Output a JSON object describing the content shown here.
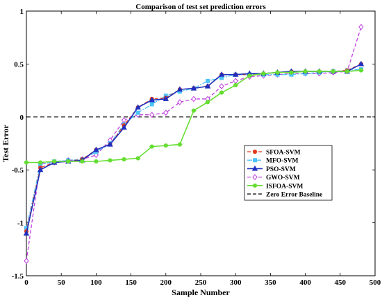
{
  "chart_data": {
    "type": "line",
    "title": "Comparison of test set prediction errors",
    "xlabel": "Sample Number",
    "ylabel": "Test Error",
    "xlim": [
      0,
      500
    ],
    "ylim": [
      -1.5,
      1
    ],
    "xticks": [
      "0",
      "50",
      "100",
      "150",
      "200",
      "250",
      "300",
      "350",
      "400",
      "450",
      "500"
    ],
    "yticks": [
      "-1.5",
      "-1",
      "-0.5",
      "0",
      "0.5",
      "1"
    ],
    "grid": false,
    "legend": "center-right",
    "x": [
      0,
      20,
      40,
      60,
      80,
      100,
      120,
      140,
      160,
      180,
      200,
      220,
      240,
      260,
      280,
      300,
      320,
      340,
      360,
      380,
      400,
      420,
      440,
      460,
      480
    ],
    "series": [
      {
        "name": "SFOA-SVM",
        "color": "#e03a1e",
        "values": [
          -1.08,
          -0.48,
          -0.43,
          -0.42,
          -0.4,
          -0.31,
          -0.26,
          -0.08,
          0.09,
          0.17,
          0.18,
          0.26,
          0.27,
          0.29,
          0.4,
          0.4,
          0.4,
          0.41,
          0.42,
          0.43,
          0.43,
          0.43,
          0.43,
          0.44,
          0.5
        ]
      },
      {
        "name": "MFO-SVM",
        "color": "#4fc3f7",
        "values": [
          -1.05,
          -0.45,
          -0.42,
          -0.41,
          -0.4,
          -0.33,
          -0.25,
          -0.07,
          0.04,
          0.12,
          0.2,
          0.24,
          0.27,
          0.34,
          0.37,
          0.4,
          0.4,
          0.4,
          0.4,
          0.4,
          0.41,
          0.42,
          0.43,
          0.44,
          0.45
        ]
      },
      {
        "name": "PSO-SVM",
        "color": "#1f2fbf",
        "values": [
          -1.1,
          -0.5,
          -0.43,
          -0.42,
          -0.41,
          -0.31,
          -0.26,
          -0.1,
          0.09,
          0.16,
          0.17,
          0.26,
          0.27,
          0.29,
          0.4,
          0.4,
          0.41,
          0.41,
          0.42,
          0.43,
          0.43,
          0.43,
          0.43,
          0.43,
          0.5
        ]
      },
      {
        "name": "GWO-SVM",
        "color": "#c040e0",
        "values": [
          -1.36,
          -0.44,
          -0.43,
          -0.41,
          -0.4,
          -0.36,
          -0.22,
          -0.03,
          0.02,
          0.02,
          0.04,
          0.14,
          0.17,
          0.17,
          0.29,
          0.34,
          0.38,
          0.39,
          0.4,
          0.41,
          0.41,
          0.41,
          0.42,
          0.43,
          0.85
        ]
      },
      {
        "name": "ISFOA-SVM",
        "color": "#66dd33",
        "values": [
          -0.43,
          -0.43,
          -0.42,
          -0.42,
          -0.42,
          -0.42,
          -0.41,
          -0.4,
          -0.39,
          -0.28,
          -0.27,
          -0.26,
          0.06,
          0.14,
          0.23,
          0.3,
          0.39,
          0.41,
          0.42,
          0.42,
          0.43,
          0.43,
          0.43,
          0.43,
          0.44
        ]
      }
    ],
    "baseline": {
      "name": "Zero Error Baseline",
      "value": 0,
      "color": "#000000"
    }
  }
}
